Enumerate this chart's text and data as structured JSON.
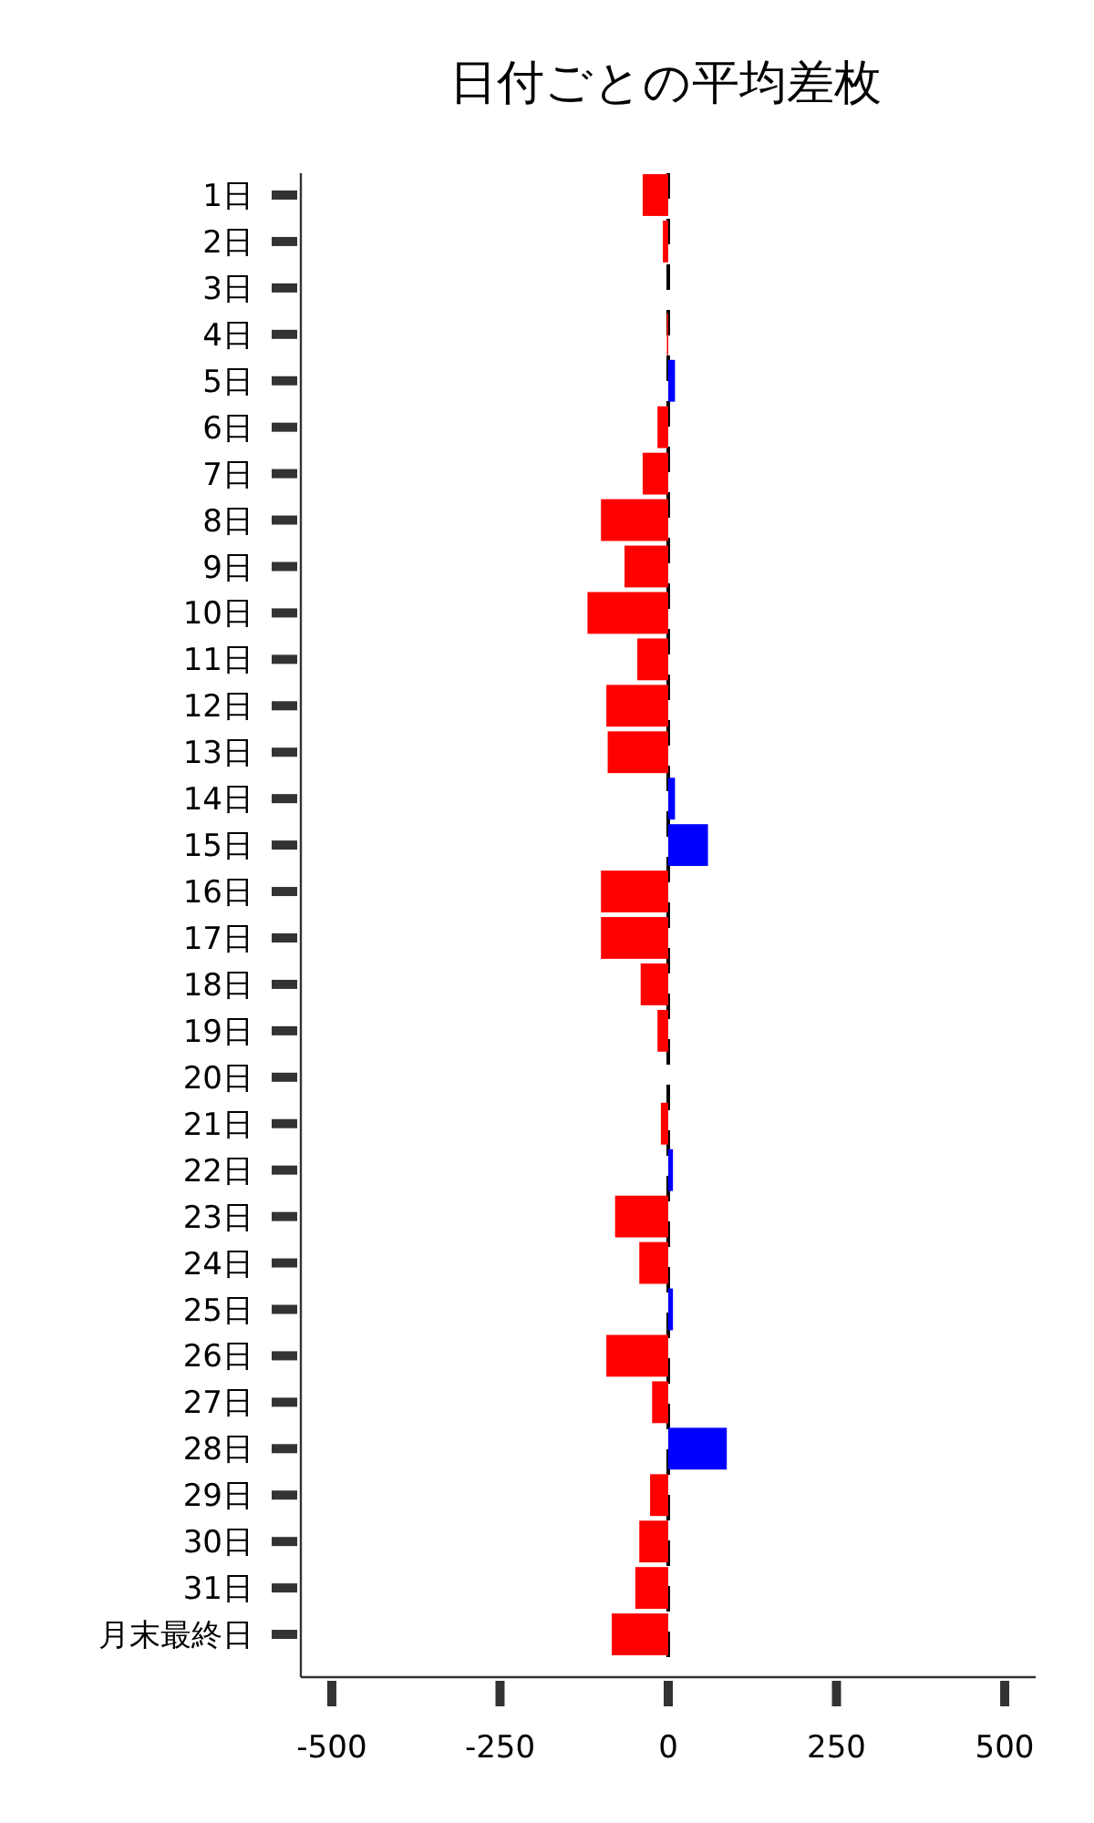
{
  "chart_data": {
    "type": "bar",
    "orientation": "horizontal",
    "title": "日付ごとの平均差枚",
    "categories": [
      "1日",
      "2日",
      "3日",
      "4日",
      "5日",
      "6日",
      "7日",
      "8日",
      "9日",
      "10日",
      "11日",
      "12日",
      "13日",
      "14日",
      "15日",
      "16日",
      "17日",
      "18日",
      "19日",
      "20日",
      "21日",
      "22日",
      "23日",
      "24日",
      "25日",
      "26日",
      "27日",
      "28日",
      "29日",
      "30日",
      "31日",
      "月末最終日"
    ],
    "values": [
      -38,
      -8,
      0,
      -2,
      10,
      -16,
      -38,
      -100,
      -65,
      -120,
      -46,
      -92,
      -90,
      10,
      59,
      -100,
      -100,
      -41,
      -16,
      0,
      -11,
      7,
      -79,
      -43,
      7,
      -92,
      -24,
      87,
      -27,
      -43,
      -49,
      -84
    ],
    "colors": [
      "#ff0000",
      "#ff0000",
      "#ff0000",
      "#ff0000",
      "#0000ff",
      "#ff0000",
      "#ff0000",
      "#ff0000",
      "#ff0000",
      "#ff0000",
      "#ff0000",
      "#ff0000",
      "#ff0000",
      "#0000ff",
      "#0000ff",
      "#ff0000",
      "#ff0000",
      "#ff0000",
      "#ff0000",
      "#ff0000",
      "#ff0000",
      "#0000ff",
      "#ff0000",
      "#ff0000",
      "#0000ff",
      "#ff0000",
      "#ff0000",
      "#0000ff",
      "#ff0000",
      "#ff0000",
      "#ff0000",
      "#ff0000"
    ],
    "xlim": [
      -546,
      546
    ],
    "xticks": [
      -500,
      -250,
      0,
      250,
      500
    ],
    "ref_lines": [
      {
        "axis": "x",
        "value": 0,
        "color": "#000000",
        "line_style": "dashed"
      }
    ]
  }
}
